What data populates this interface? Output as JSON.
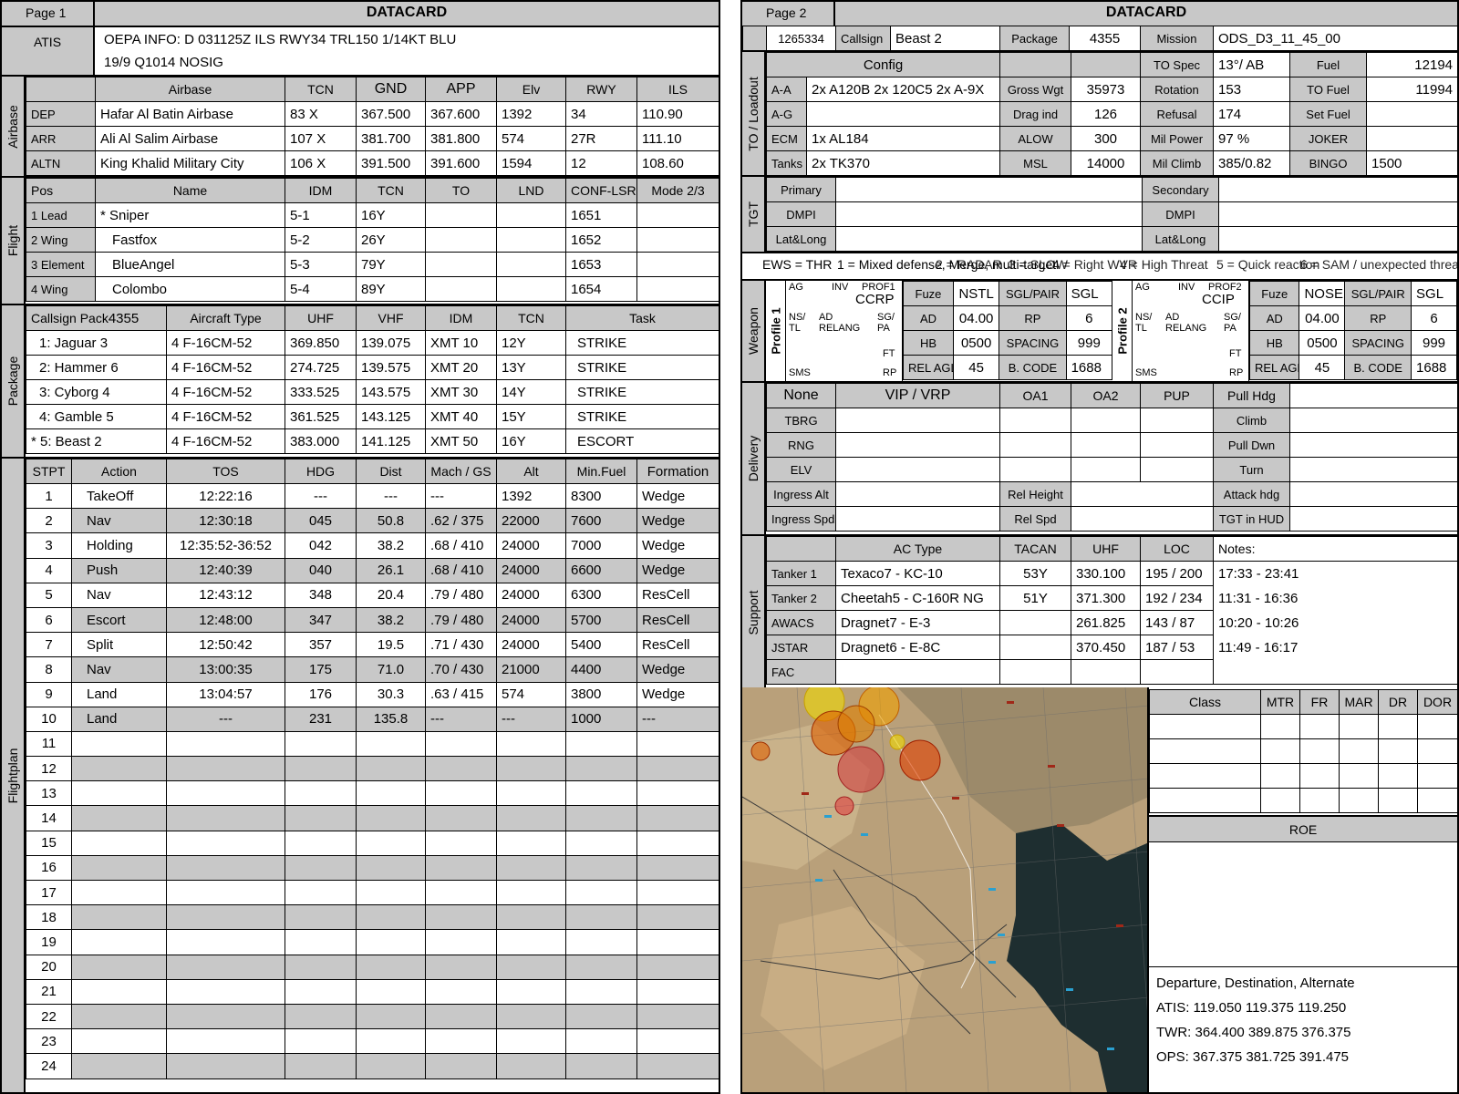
{
  "page1": {
    "page_label": "Page 1",
    "title": "DATACARD",
    "atis": {
      "label": "ATIS",
      "line1": "OEPA INFO: D 031125Z ILS RWY34 TRL150 1/14KT BLU",
      "line2": "19/9 Q1014  NOSIG"
    },
    "airbase": {
      "section_label": "Airbase",
      "headers": [
        "Airbase",
        "TCN",
        "GND",
        "APP",
        "Elv",
        "RWY",
        "ILS"
      ],
      "rows": [
        {
          "role": "DEP",
          "name": "Hafar Al Batin Airbase",
          "tcn": "83 X",
          "gnd": "367.500",
          "app": "367.600",
          "elv": "1392",
          "rwy": "34",
          "ils": "110.90"
        },
        {
          "role": "ARR",
          "name": "Ali Al Salim Airbase",
          "tcn": "107 X",
          "gnd": "381.700",
          "app": "381.800",
          "elv": "574",
          "rwy": "27R",
          "ils": "111.10"
        },
        {
          "role": "ALTN",
          "name": "King Khalid Military City",
          "tcn": "106 X",
          "gnd": "391.500",
          "app": "391.600",
          "elv": "1594",
          "rwy": "12",
          "ils": "108.60"
        }
      ]
    },
    "flight": {
      "section_label": "Flight",
      "headers": [
        "Pos",
        "Name",
        "IDM",
        "TCN",
        "TO",
        "LND",
        "CONF-LSR",
        "Mode 2/3"
      ],
      "rows": [
        {
          "pos": "1 Lead",
          "name": "* Sniper",
          "idm": "5-1",
          "tcn": "16Y",
          "to": "",
          "lnd": "",
          "conf": "1651",
          "mode": ""
        },
        {
          "pos": "2 Wing",
          "name": "Fastfox",
          "idm": "5-2",
          "tcn": "26Y",
          "to": "",
          "lnd": "",
          "conf": "1652",
          "mode": ""
        },
        {
          "pos": "3 Element",
          "name": "BlueAngel",
          "idm": "5-3",
          "tcn": "79Y",
          "to": "",
          "lnd": "",
          "conf": "1653",
          "mode": ""
        },
        {
          "pos": "4 Wing",
          "name": "Colombo",
          "idm": "5-4",
          "tcn": "89Y",
          "to": "",
          "lnd": "",
          "conf": "1654",
          "mode": ""
        }
      ]
    },
    "package": {
      "section_label": "Package",
      "callsign_header": "Callsign Pack",
      "pack_number": "4355",
      "headers": [
        "Aircraft Type",
        "UHF",
        "VHF",
        "IDM",
        "TCN",
        "Task"
      ],
      "rows": [
        {
          "callsign": "1: Jaguar 3",
          "type": "4 F-16CM-52",
          "uhf": "369.850",
          "vhf": "139.075",
          "idm": "XMT 10",
          "tcn": "12Y",
          "task": "STRIKE"
        },
        {
          "callsign": "2: Hammer 6",
          "type": "4 F-16CM-52",
          "uhf": "274.725",
          "vhf": "139.575",
          "idm": "XMT 20",
          "tcn": "13Y",
          "task": "STRIKE"
        },
        {
          "callsign": "3: Cyborg 4",
          "type": "4 F-16CM-52",
          "uhf": "333.525",
          "vhf": "143.575",
          "idm": "XMT 30",
          "tcn": "14Y",
          "task": "STRIKE"
        },
        {
          "callsign": "4: Gamble 5",
          "type": "4 F-16CM-52",
          "uhf": "361.525",
          "vhf": "143.125",
          "idm": "XMT 40",
          "tcn": "15Y",
          "task": "STRIKE"
        },
        {
          "callsign": "* 5: Beast 2",
          "type": "4 F-16CM-52",
          "uhf": "383.000",
          "vhf": "141.125",
          "idm": "XMT 50",
          "tcn": "16Y",
          "task": "ESCORT"
        }
      ]
    },
    "flightplan": {
      "section_label": "Flightplan",
      "headers": [
        "STPT",
        "Action",
        "TOS",
        "HDG",
        "Dist",
        "Mach / GS",
        "Alt",
        "Min.Fuel",
        "Formation"
      ],
      "rows": [
        {
          "stpt": "1",
          "action": "TakeOff",
          "tos": "12:22:16",
          "hdg": "---",
          "dist": "---",
          "mach": "---",
          "alt": "1392",
          "fuel": "8300",
          "form": "Wedge"
        },
        {
          "stpt": "2",
          "action": "Nav",
          "tos": "12:30:18",
          "hdg": "045",
          "dist": "50.8",
          "mach": ".62 / 375",
          "alt": "22000",
          "fuel": "7600",
          "form": "Wedge"
        },
        {
          "stpt": "3",
          "action": "Holding",
          "tos": "12:35:52-36:52",
          "hdg": "042",
          "dist": "38.2",
          "mach": ".68 / 410",
          "alt": "24000",
          "fuel": "7000",
          "form": "Wedge"
        },
        {
          "stpt": "4",
          "action": "Push",
          "tos": "12:40:39",
          "hdg": "040",
          "dist": "26.1",
          "mach": ".68 / 410",
          "alt": "24000",
          "fuel": "6600",
          "form": "Wedge"
        },
        {
          "stpt": "5",
          "action": "Nav",
          "tos": "12:43:12",
          "hdg": "348",
          "dist": "20.4",
          "mach": ".79 / 480",
          "alt": "24000",
          "fuel": "6300",
          "form": "ResCell"
        },
        {
          "stpt": "6",
          "action": "Escort",
          "tos": "12:48:00",
          "hdg": "347",
          "dist": "38.2",
          "mach": ".79 / 480",
          "alt": "24000",
          "fuel": "5700",
          "form": "ResCell"
        },
        {
          "stpt": "7",
          "action": "Split",
          "tos": "12:50:42",
          "hdg": "357",
          "dist": "19.5",
          "mach": ".71 / 430",
          "alt": "24000",
          "fuel": "5400",
          "form": "ResCell"
        },
        {
          "stpt": "8",
          "action": "Nav",
          "tos": "13:00:35",
          "hdg": "175",
          "dist": "71.0",
          "mach": ".70 / 430",
          "alt": "21000",
          "fuel": "4400",
          "form": "Wedge"
        },
        {
          "stpt": "9",
          "action": "Land",
          "tos": "13:04:57",
          "hdg": "176",
          "dist": "30.3",
          "mach": ".63 / 415",
          "alt": "574",
          "fuel": "3800",
          "form": "Wedge"
        },
        {
          "stpt": "10",
          "action": "Land",
          "tos": "---",
          "hdg": "231",
          "dist": "135.8",
          "mach": "---",
          "alt": "---",
          "fuel": "1000",
          "form": "---"
        },
        {
          "stpt": "11"
        },
        {
          "stpt": "12"
        },
        {
          "stpt": "13"
        },
        {
          "stpt": "14"
        },
        {
          "stpt": "15"
        },
        {
          "stpt": "16"
        },
        {
          "stpt": "17"
        },
        {
          "stpt": "18"
        },
        {
          "stpt": "19"
        },
        {
          "stpt": "20"
        },
        {
          "stpt": "21"
        },
        {
          "stpt": "22"
        },
        {
          "stpt": "23"
        },
        {
          "stpt": "24"
        }
      ]
    }
  },
  "page2": {
    "page_label": "Page 2",
    "title": "DATACARD",
    "header_row": {
      "id": "1265334",
      "callsign_label": "Callsign",
      "callsign": "Beast 2",
      "package_label": "Package",
      "package": "4355",
      "mission_label": "Mission",
      "mission": "ODS_D3_11_45_00"
    },
    "loadout": {
      "section_label": "TO / Loadout",
      "config_label": "Config",
      "to_spec_label": "TO Spec",
      "to_spec": "13°/ AB",
      "fuel_label": "Fuel",
      "fuel": "12194",
      "aa_label": "A-A",
      "aa": "2x A120B 2x 120C5 2x A-9X",
      "gross_label": "Gross Wgt",
      "gross": "35973",
      "rotation_label": "Rotation",
      "rotation": "153",
      "to_fuel_label": "TO Fuel",
      "to_fuel": "11994",
      "ag_label": "A-G",
      "ag": "",
      "drag_label": "Drag ind",
      "drag": "126",
      "refusal_label": "Refusal",
      "refusal": "174",
      "set_fuel_label": "Set Fuel",
      "set_fuel": "",
      "ecm_label": "ECM",
      "ecm": "1x AL184",
      "alow_label": "ALOW",
      "alow": "300",
      "mil_power_label": "Mil Power",
      "mil_power": "97 %",
      "joker_label": "JOKER",
      "joker": "",
      "tanks_label": "Tanks",
      "tanks": "2x TK370",
      "msl_label": "MSL",
      "msl": "14000",
      "mil_climb_label": "Mil Climb",
      "mil_climb": "385/0.82",
      "bingo_label": "BINGO",
      "bingo": "1500"
    },
    "tgt": {
      "section_label": "TGT",
      "primary": "Primary",
      "secondary": "Secondary",
      "dmpi": "DMPI",
      "latlong": "Lat&Long"
    },
    "ews": {
      "thr_label": "EWS = THR",
      "t1": "1 = Mixed defense, Merge, multi-target",
      "t2": "2 = RADAR",
      "t3": "3 = SLOW",
      "t4": "4 = Right WVR",
      "t5": "4 = High Threat",
      "t6": "5 = Quick reaction",
      "t7": "6 = SAM / unexpected threat"
    },
    "weapon": {
      "section_label": "Weapon",
      "profile1": {
        "label": "Profile 1",
        "ag": "AG",
        "inv": "INV",
        "prof": "PROF1",
        "mode": "CCRP",
        "ns": "NS/",
        "tl": "TL",
        "ad": "AD",
        "relang": "RELANG",
        "sgpa1": "SG/",
        "sgpa2": "PA",
        "ft": "FT",
        "sms": "SMS",
        "rp": "RP",
        "fuze_label": "Fuze",
        "fuze": "NSTL",
        "sglpair_label": "SGL/PAIR",
        "sglpair": "SGL",
        "ad_label": "AD",
        "ad_val": "04.00",
        "rp_label": "RP",
        "rp_val": "6",
        "hb_label": "HB",
        "hb": "0500",
        "spacing_label": "SPACING",
        "spacing": "999",
        "relagl_label": "REL AGL",
        "relagl": "45",
        "bcode_label": "B. CODE",
        "bcode": "1688"
      },
      "profile2": {
        "label": "Profile 2",
        "ag": "AG",
        "inv": "INV",
        "prof": "PROF2",
        "mode": "CCIP",
        "ns": "NS/",
        "tl": "TL",
        "ad": "AD",
        "relang": "RELANG",
        "sgpa1": "SG/",
        "sgpa2": "PA",
        "ft": "FT",
        "sms": "SMS",
        "rp": "RP",
        "fuze_label": "Fuze",
        "fuze": "NOSE",
        "sglpair_label": "SGL/PAIR",
        "sglpair": "SGL",
        "ad_label": "AD",
        "ad_val": "04.00",
        "rp_label": "RP",
        "rp_val": "6",
        "hb_label": "HB",
        "hb": "0500",
        "spacing_label": "SPACING",
        "spacing": "999",
        "relagl_label": "REL AGL",
        "relagl": "45",
        "bcode_label": "B. CODE",
        "bcode": "1688"
      }
    },
    "delivery": {
      "section_label": "Delivery",
      "none": "None",
      "vip": "VIP / VRP",
      "oa1": "OA1",
      "oa2": "OA2",
      "pup": "PUP",
      "pull_hdg": "Pull Hdg",
      "tbrg": "TBRG",
      "climb": "Climb",
      "rng": "RNG",
      "pull_dwn": "Pull Dwn",
      "elv": "ELV",
      "turn": "Turn",
      "ingress_alt": "Ingress Alt",
      "rel_height": "Rel Height",
      "attack_hdg": "Attack hdg",
      "ingress_spd": "Ingress Spd",
      "rel_spd": "Rel Spd",
      "tgt_hud": "TGT in HUD"
    },
    "support": {
      "section_label": "Support",
      "headers": [
        "AC Type",
        "TACAN",
        "UHF",
        "LOC",
        "Notes:"
      ],
      "rows": [
        {
          "role": "Tanker 1",
          "type": "Texaco7 - KC-10",
          "tacan": "53Y",
          "uhf": "330.100",
          "loc": "195 / 200",
          "notes": "17:33 - 23:41"
        },
        {
          "role": "Tanker 2",
          "type": "Cheetah5 - C-160R NG",
          "tacan": "51Y",
          "uhf": "371.300",
          "loc": "192 / 234",
          "notes": "11:31 - 16:36"
        },
        {
          "role": "AWACS",
          "type": "Dragnet7 - E-3",
          "tacan": "",
          "uhf": "261.825",
          "loc": "143 / 87",
          "notes": "10:20 - 10:26"
        },
        {
          "role": "JSTAR",
          "type": "Dragnet6 - E-8C",
          "tacan": "",
          "uhf": "370.450",
          "loc": "187 / 53",
          "notes": "11:49 - 16:17"
        },
        {
          "role": "FAC",
          "type": "",
          "tacan": "",
          "uhf": "",
          "loc": "",
          "notes": ""
        }
      ]
    },
    "class_table": {
      "headers": [
        "Class",
        "MTR",
        "FR",
        "MAR",
        "DR",
        "DOR"
      ]
    },
    "roe": {
      "title": "ROE"
    },
    "comms": {
      "title": "Departure, Destination, Alternate",
      "atis": "ATIS: 119.050  119.375  119.250",
      "twr": "TWR: 364.400  389.875  376.375",
      "ops": "OPS: 367.375  381.725  391.475"
    },
    "map": {
      "water_color": "#1e2e30",
      "land_color": "#b9a07a"
    }
  }
}
